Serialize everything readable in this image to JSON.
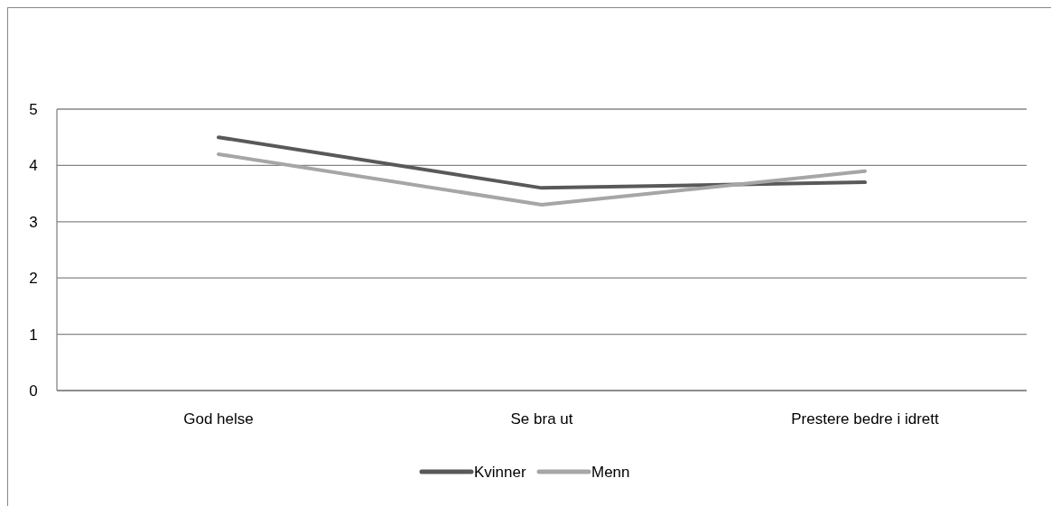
{
  "chart_data": {
    "type": "line",
    "categories": [
      "God helse",
      "Se bra ut",
      "Prestere bedre i idrett"
    ],
    "series": [
      {
        "name": "Kvinner",
        "color": "#595959",
        "values": [
          4.5,
          3.6,
          3.7
        ]
      },
      {
        "name": "Menn",
        "color": "#a6a6a6",
        "values": [
          4.2,
          3.3,
          3.9
        ]
      }
    ],
    "ylim": [
      0,
      5
    ],
    "yticks": [
      0,
      1,
      2,
      3,
      4,
      5
    ],
    "grid": "y",
    "legend": "bottom",
    "marker": "none",
    "line_style": "solid"
  }
}
